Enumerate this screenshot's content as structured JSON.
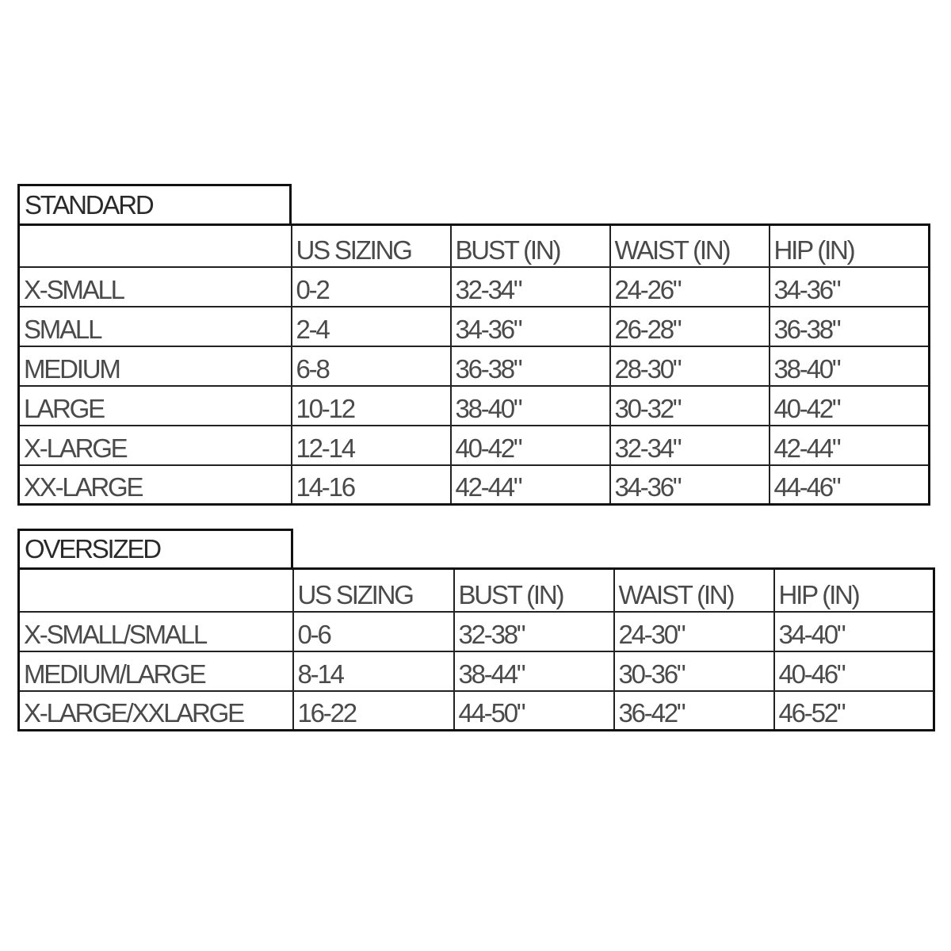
{
  "sections": [
    {
      "title": "STANDARD",
      "headers": [
        "",
        "US SIZING",
        "BUST (IN)",
        "WAIST (IN)",
        "HIP (IN)"
      ],
      "rows": [
        [
          "X-SMALL",
          "0-2",
          "32-34\"",
          "24-26\"",
          "34-36\""
        ],
        [
          "SMALL",
          "2-4",
          "34-36\"",
          "26-28\"",
          "36-38\""
        ],
        [
          "MEDIUM",
          "6-8",
          "36-38\"",
          "28-30\"",
          "38-40\""
        ],
        [
          "LARGE",
          "10-12",
          "38-40\"",
          "30-32\"",
          "40-42\""
        ],
        [
          "X-LARGE",
          "12-14",
          "40-42\"",
          "32-34\"",
          "42-44\""
        ],
        [
          "XX-LARGE",
          "14-16",
          "42-44\"",
          "34-36\"",
          "44-46\""
        ]
      ]
    },
    {
      "title": "OVERSIZED",
      "headers": [
        "",
        "US SIZING",
        "BUST (IN)",
        "WAIST (IN)",
        "HIP (IN)"
      ],
      "rows": [
        [
          "X-SMALL/SMALL",
          "0-6",
          "32-38\"",
          "24-30\"",
          "34-40\""
        ],
        [
          "MEDIUM/LARGE",
          "8-14",
          "38-44\"",
          "30-36\"",
          "40-46\""
        ],
        [
          "X-LARGE/XXLARGE",
          "16-22",
          "44-50\"",
          "36-42\"",
          "46-52\""
        ]
      ]
    }
  ]
}
